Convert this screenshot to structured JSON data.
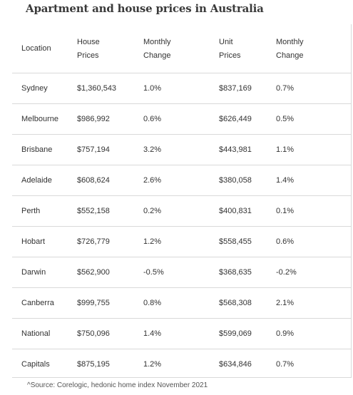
{
  "title": "Apartment and house prices in Australia",
  "table": {
    "columns": [
      [
        "Location"
      ],
      [
        "House",
        "Prices"
      ],
      [
        "Monthly",
        "Change"
      ],
      [
        "Unit",
        "Prices"
      ],
      [
        "Monthly",
        "Change"
      ]
    ],
    "rows": [
      [
        "Sydney",
        "$1,360,543",
        "1.0%",
        "$837,169",
        "0.7%"
      ],
      [
        "Melbourne",
        "$986,992",
        "0.6%",
        "$626,449",
        "0.5%"
      ],
      [
        "Brisbane",
        "$757,194",
        "3.2%",
        "$443,981",
        "1.1%"
      ],
      [
        "Adelaide",
        "$608,624",
        "2.6%",
        "$380,058",
        "1.4%"
      ],
      [
        "Perth",
        "$552,158",
        "0.2%",
        "$400,831",
        "0.1%"
      ],
      [
        "Hobart",
        "$726,779",
        "1.2%",
        "$558,455",
        "0.6%"
      ],
      [
        "Darwin",
        "$562,900",
        "-0.5%",
        "$368,635",
        "-0.2%"
      ],
      [
        "Canberra",
        "$999,755",
        "0.8%",
        "$568,308",
        "2.1%"
      ],
      [
        "National",
        "$750,096",
        "1.4%",
        "$599,069",
        "0.9%"
      ],
      [
        "Capitals",
        "$875,195",
        "1.2%",
        "$634,846",
        "0.7%"
      ]
    ]
  },
  "source": "^Source: Corelogic, hedonic home index November 2021",
  "colors": {
    "text": "#333333",
    "rule": "#d9d9d9"
  }
}
